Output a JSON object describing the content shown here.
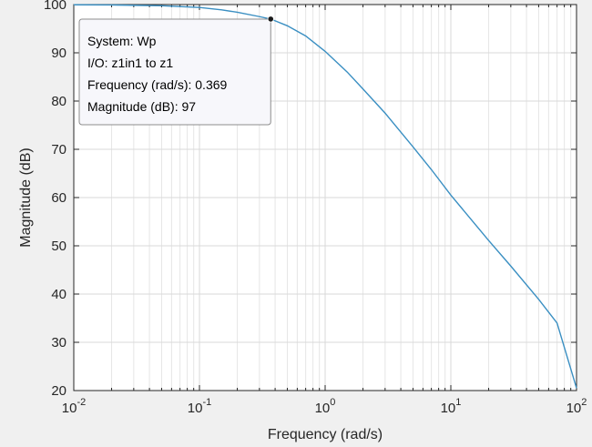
{
  "chart_data": {
    "type": "line",
    "title": "",
    "xlabel": "Frequency  (rad/s)",
    "ylabel": "Magnitude (dB)",
    "xscale": "log",
    "xlim": [
      0.01,
      100
    ],
    "ylim": [
      20,
      100
    ],
    "grid": true,
    "legend": "none",
    "x_ticks": [
      {
        "base": "10",
        "exp": "-2",
        "value": 0.01
      },
      {
        "base": "10",
        "exp": "-1",
        "value": 0.1
      },
      {
        "base": "10",
        "exp": "0",
        "value": 1
      },
      {
        "base": "10",
        "exp": "1",
        "value": 10
      },
      {
        "base": "10",
        "exp": "2",
        "value": 100
      }
    ],
    "y_ticks": [
      "20",
      "30",
      "40",
      "50",
      "60",
      "70",
      "80",
      "90",
      "100"
    ],
    "series": [
      {
        "color": "#3a8fc2",
        "x": [
          0.01,
          0.02,
          0.05,
          0.1,
          0.15,
          0.2,
          0.3,
          0.369,
          0.5,
          0.7,
          1,
          1.5,
          2,
          3,
          5,
          7,
          10,
          20,
          30,
          50,
          70,
          100
        ],
        "y": [
          99.95,
          99.92,
          99.75,
          99.4,
          98.9,
          98.4,
          97.5,
          97.0,
          95.6,
          93.5,
          90.3,
          86.0,
          82.5,
          77.5,
          70.5,
          65.8,
          60.5,
          51.1,
          45.8,
          38.9,
          34.0,
          20.5
        ]
      }
    ],
    "datatip": {
      "x": 0.369,
      "y": 97,
      "line1": "System: Wp",
      "line2": "I/O: z1in1 to z1",
      "line3": "Frequency (rad/s): 0.369",
      "line4": "Magnitude (dB): 97"
    }
  }
}
